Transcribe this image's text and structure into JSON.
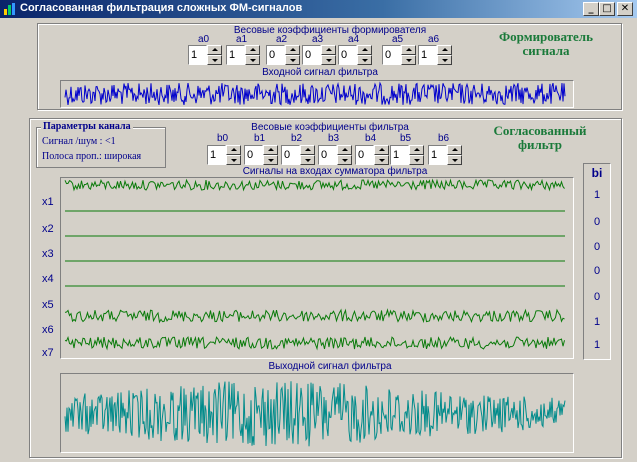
{
  "window": {
    "title": "Согласованная фильтрация сложных ФМ-сигналов",
    "minimize": "_",
    "maximize": "□",
    "close": "✕"
  },
  "shaper": {
    "weights_label": "Весовые коэффициенты формирователя",
    "title_line1": "Формирователь",
    "title_line2": "сигнала",
    "coef_names": [
      "a0",
      "a1",
      "a2",
      "a3",
      "a4",
      "a5",
      "a6"
    ],
    "coef_values": [
      "1",
      "1",
      "0",
      "0",
      "0",
      "0",
      "1"
    ],
    "input_signal_label": "Входной  сигнал фильтра"
  },
  "channel": {
    "group_title": "Параметры канала",
    "snr_label": "Сигнал /шум :  <1",
    "band_label": "Полоса проп.: широкая"
  },
  "filter": {
    "title_line1": "Согласованный",
    "title_line2": "фильтр",
    "weights_label": "Весовые коэффициенты фильтра",
    "coef_names": [
      "b0",
      "b1",
      "b2",
      "b3",
      "b4",
      "b5",
      "b6"
    ],
    "coef_values": [
      "1",
      "0",
      "0",
      "0",
      "0",
      "1",
      "1"
    ],
    "adder_inputs_label": "Сигналы на входах  сумматора фильтра",
    "input_names": [
      "x1",
      "x2",
      "x3",
      "x4",
      "x5",
      "x6",
      "x7"
    ],
    "bi_header": "bi",
    "bi_values": [
      "1",
      "0",
      "0",
      "0",
      "0",
      "1",
      "1"
    ],
    "output_signal_label": "Выходной сигнал  фильтра"
  },
  "colors": {
    "input_signal": "#0000cc",
    "adder_signals": "#0a7a0a",
    "output_signal": "#008b8b",
    "label_text": "#00008b",
    "section_title": "#1a7a3a"
  }
}
